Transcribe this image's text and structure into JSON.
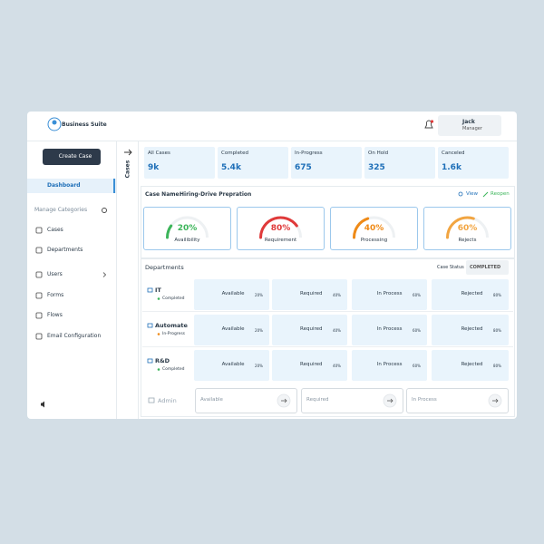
{
  "header": {
    "brand": "Business Suite",
    "user_name": "Jack",
    "user_role": "Manager"
  },
  "sidebar": {
    "create_button": "Create Case",
    "dashboard": "Dashboard",
    "section_title": "Manage Categories",
    "items": [
      "Cases",
      "Departments",
      "Users",
      "Forms",
      "Flows",
      "Email Configuration"
    ]
  },
  "tab": "Cases",
  "stats": [
    {
      "label": "All Cases",
      "value": "9k"
    },
    {
      "label": "Completed",
      "value": "5.4k"
    },
    {
      "label": "In-Progress",
      "value": "675"
    },
    {
      "label": "On Hold",
      "value": "325"
    },
    {
      "label": "Canceled",
      "value": "1.6k"
    }
  ],
  "case": {
    "name_label": "Case Name:",
    "name": "Hiring-Drive Prepration",
    "view": "View",
    "reopen": "Reopen",
    "gauges": [
      {
        "value": 20,
        "label": "20%",
        "caption": "Availibility",
        "color": "#3cb55a"
      },
      {
        "value": 80,
        "label": "80%",
        "caption": "Requirement",
        "color": "#e03a3a"
      },
      {
        "value": 40,
        "label": "40%",
        "caption": "Processing",
        "color": "#ef8a17"
      },
      {
        "value": 60,
        "label": "60%",
        "caption": "Rejects",
        "color": "#f2a541"
      }
    ]
  },
  "departments": {
    "title": "Departments",
    "status_label": "Case Status",
    "status_value": "COMPLETED",
    "rows": [
      {
        "name": "IT",
        "status": "Completed",
        "status_color": "#3cb55a",
        "cells": [
          {
            "label": "Available",
            "value": 20,
            "percent": "20%",
            "color": "#3cb55a"
          },
          {
            "label": "Required",
            "value": 40,
            "percent": "40%",
            "color": "#ef8a17"
          },
          {
            "label": "In Process",
            "value": 60,
            "percent": "60%",
            "color": "#ef8a17"
          },
          {
            "label": "Rejected",
            "value": 80,
            "percent": "80%",
            "color": "#e03a3a"
          }
        ]
      },
      {
        "name": "Automate",
        "status": "In-Progress",
        "status_color": "#ef8a17",
        "cells": [
          {
            "label": "Available",
            "value": 20,
            "percent": "20%",
            "color": "#3cb55a"
          },
          {
            "label": "Required",
            "value": 40,
            "percent": "40%",
            "color": "#ef8a17"
          },
          {
            "label": "In Process",
            "value": 60,
            "percent": "60%",
            "color": "#ef8a17"
          },
          {
            "label": "Rejected",
            "value": 80,
            "percent": "80%",
            "color": "#e03a3a"
          }
        ]
      },
      {
        "name": "R&D",
        "status": "Completed",
        "status_color": "#3cb55a",
        "cells": [
          {
            "label": "Available",
            "value": 20,
            "percent": "20%",
            "color": "#3cb55a"
          },
          {
            "label": "Required",
            "value": 40,
            "percent": "40%",
            "color": "#ef8a17"
          },
          {
            "label": "In Process",
            "value": 60,
            "percent": "60%",
            "color": "#ef8a17"
          },
          {
            "label": "Rejected",
            "value": 80,
            "percent": "80%",
            "color": "#e03a3a"
          }
        ]
      }
    ],
    "admin": {
      "name": "Admin",
      "cells": [
        "Available",
        "Required",
        "In Process"
      ]
    }
  }
}
